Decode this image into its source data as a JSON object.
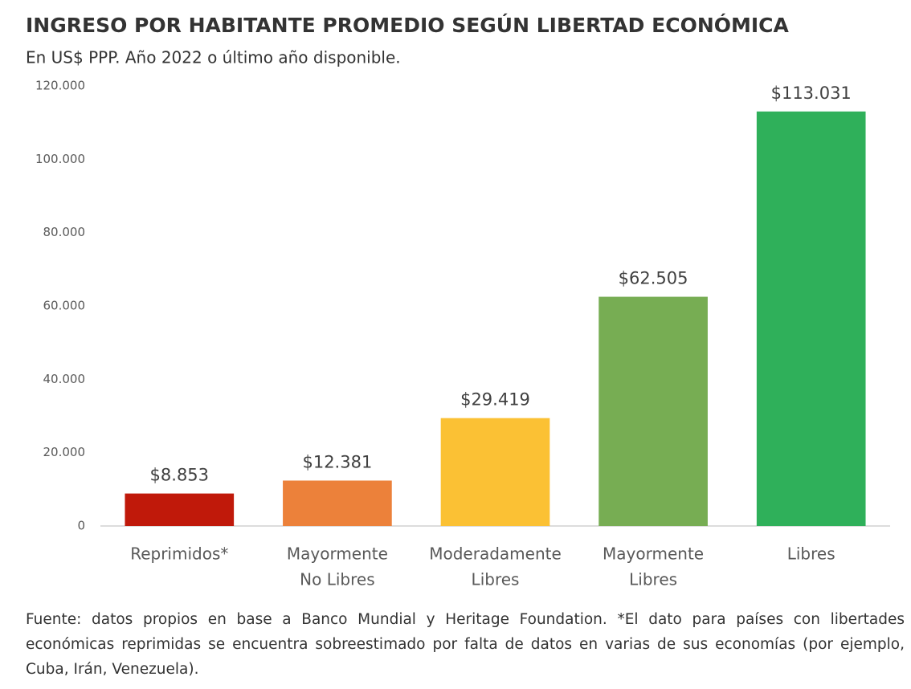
{
  "chart_data": {
    "type": "bar",
    "title": "INGRESO POR HABITANTE PROMEDIO SEGÚN LIBERTAD ECONÓMICA",
    "subtitle": "En US$ PPP. Año 2022 o último año disponible.",
    "categories": [
      [
        "Reprimidos*"
      ],
      [
        "Mayormente",
        "No Libres"
      ],
      [
        "Moderadamente",
        "Libres"
      ],
      [
        "Mayormente",
        "Libres"
      ],
      [
        "Libres"
      ]
    ],
    "values": [
      8853,
      12381,
      29419,
      62505,
      113031
    ],
    "value_labels": [
      "$8.853",
      "$12.381",
      "$29.419",
      "$62.505",
      "$113.031"
    ],
    "colors": [
      "#c0190a",
      "#ec813a",
      "#fbc134",
      "#77ad53",
      "#2fb05a"
    ],
    "ylim": [
      0,
      120000
    ],
    "yticks": [
      0,
      {
        "value": 20000,
        "label": "20.000"
      },
      {
        "value": 40000,
        "label": "40.000"
      },
      {
        "value": 60000,
        "label": "60.000"
      },
      {
        "value": 80000,
        "label": "80.000"
      },
      {
        "value": 100000,
        "label": "100.000"
      },
      {
        "value": 120000,
        "label": "120.000"
      }
    ],
    "grid": false,
    "source": "Fuente: datos propios en base a Banco Mundial y Heritage Foundation. *El dato para países con libertades económicas reprimidas se encuentra sobreestimado por falta de datos en varias de sus economías (por ejemplo, Cuba, Irán, Venezuela)."
  }
}
